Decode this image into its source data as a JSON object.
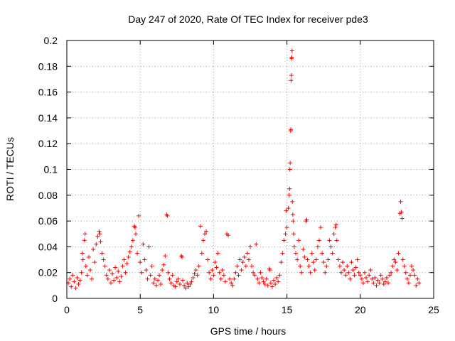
{
  "chart_data": {
    "type": "scatter",
    "title": "Day 247 of 2020, Rate Of TEC Index for receiver pde3",
    "xlabel": "GPS time / hours",
    "ylabel": "ROTI / TECUs",
    "xlim": [
      0,
      25
    ],
    "ylim": [
      0,
      0.2
    ],
    "xticks": [
      0,
      5,
      10,
      15,
      20,
      25
    ],
    "xtick_labels": [
      "0",
      "5",
      "10",
      "15",
      "20",
      "25"
    ],
    "yticks": [
      0,
      0.02,
      0.04,
      0.06,
      0.08,
      0.1,
      0.12,
      0.14,
      0.16,
      0.18,
      0.2
    ],
    "ytick_labels": [
      "0",
      "0.02",
      "0.04",
      "0.06",
      "0.08",
      "0.1",
      "0.12",
      "0.14",
      "0.16",
      "0.18",
      "0.2"
    ],
    "grid": true,
    "marker": "plus",
    "series_color": "#ff0000",
    "series": [
      {
        "name": "ROTI",
        "points": [
          [
            0.1,
            0.012
          ],
          [
            0.2,
            0.015
          ],
          [
            0.3,
            0.009
          ],
          [
            0.4,
            0.018
          ],
          [
            0.5,
            0.013
          ],
          [
            0.6,
            0.008
          ],
          [
            0.7,
            0.016
          ],
          [
            0.8,
            0.011
          ],
          [
            0.9,
            0.014
          ],
          [
            1.0,
            0.02
          ],
          [
            1.05,
            0.035
          ],
          [
            1.1,
            0.03
          ],
          [
            1.2,
            0.045
          ],
          [
            1.25,
            0.05
          ],
          [
            1.3,
            0.025
          ],
          [
            1.4,
            0.018
          ],
          [
            1.5,
            0.032
          ],
          [
            1.6,
            0.022
          ],
          [
            1.7,
            0.015
          ],
          [
            1.8,
            0.038
          ],
          [
            1.9,
            0.028
          ],
          [
            2.0,
            0.042
          ],
          [
            2.1,
            0.048
          ],
          [
            2.2,
            0.052
          ],
          [
            2.25,
            0.05
          ],
          [
            2.3,
            0.044
          ],
          [
            2.4,
            0.035
          ],
          [
            2.5,
            0.03
          ],
          [
            2.6,
            0.025
          ],
          [
            2.7,
            0.018
          ],
          [
            2.8,
            0.015
          ],
          [
            2.9,
            0.022
          ],
          [
            3.0,
            0.012
          ],
          [
            3.1,
            0.019
          ],
          [
            3.2,
            0.014
          ],
          [
            3.3,
            0.024
          ],
          [
            3.4,
            0.016
          ],
          [
            3.5,
            0.021
          ],
          [
            3.6,
            0.013
          ],
          [
            3.7,
            0.017
          ],
          [
            3.8,
            0.025
          ],
          [
            3.9,
            0.03
          ],
          [
            4.0,
            0.02
          ],
          [
            4.1,
            0.027
          ],
          [
            4.2,
            0.032
          ],
          [
            4.3,
            0.036
          ],
          [
            4.4,
            0.04
          ],
          [
            4.5,
            0.045
          ],
          [
            4.6,
            0.056
          ],
          [
            4.65,
            0.055
          ],
          [
            4.7,
            0.05
          ],
          [
            4.8,
            0.035
          ],
          [
            4.9,
            0.064
          ],
          [
            5.0,
            0.028
          ],
          [
            5.1,
            0.02
          ],
          [
            5.2,
            0.042
          ],
          [
            5.3,
            0.03
          ],
          [
            5.4,
            0.022
          ],
          [
            5.5,
            0.015
          ],
          [
            5.6,
            0.04
          ],
          [
            5.7,
            0.018
          ],
          [
            5.8,
            0.025
          ],
          [
            5.9,
            0.012
          ],
          [
            6.0,
            0.015
          ],
          [
            6.1,
            0.01
          ],
          [
            6.2,
            0.014
          ],
          [
            6.3,
            0.018
          ],
          [
            6.4,
            0.011
          ],
          [
            6.5,
            0.022
          ],
          [
            6.6,
            0.026
          ],
          [
            6.7,
            0.033
          ],
          [
            6.8,
            0.065
          ],
          [
            6.85,
            0.064
          ],
          [
            6.9,
            0.02
          ],
          [
            7.0,
            0.015
          ],
          [
            7.1,
            0.012
          ],
          [
            7.2,
            0.018
          ],
          [
            7.3,
            0.01
          ],
          [
            7.4,
            0.009
          ],
          [
            7.5,
            0.013
          ],
          [
            7.6,
            0.015
          ],
          [
            7.7,
            0.011
          ],
          [
            7.8,
            0.033
          ],
          [
            7.85,
            0.032
          ],
          [
            7.9,
            0.014
          ],
          [
            8.0,
            0.01
          ],
          [
            8.1,
            0.008
          ],
          [
            8.2,
            0.012
          ],
          [
            8.3,
            0.009
          ],
          [
            8.4,
            0.011
          ],
          [
            8.5,
            0.013
          ],
          [
            8.6,
            0.016
          ],
          [
            8.7,
            0.019
          ],
          [
            8.8,
            0.022
          ],
          [
            8.9,
            0.018
          ],
          [
            9.0,
            0.025
          ],
          [
            9.1,
            0.056
          ],
          [
            9.2,
            0.035
          ],
          [
            9.3,
            0.045
          ],
          [
            9.4,
            0.05
          ],
          [
            9.5,
            0.052
          ],
          [
            9.6,
            0.03
          ],
          [
            9.7,
            0.02
          ],
          [
            9.8,
            0.015
          ],
          [
            9.9,
            0.022
          ],
          [
            10.0,
            0.018
          ],
          [
            10.1,
            0.028
          ],
          [
            10.2,
            0.024
          ],
          [
            10.3,
            0.035
          ],
          [
            10.4,
            0.02
          ],
          [
            10.5,
            0.015
          ],
          [
            10.6,
            0.022
          ],
          [
            10.7,
            0.018
          ],
          [
            10.8,
            0.013
          ],
          [
            10.9,
            0.05
          ],
          [
            11.0,
            0.049
          ],
          [
            11.1,
            0.015
          ],
          [
            11.2,
            0.012
          ],
          [
            11.3,
            0.01
          ],
          [
            11.4,
            0.015
          ],
          [
            11.5,
            0.02
          ],
          [
            11.6,
            0.025
          ],
          [
            11.7,
            0.018
          ],
          [
            11.8,
            0.03
          ],
          [
            11.9,
            0.022
          ],
          [
            12.0,
            0.028
          ],
          [
            12.1,
            0.032
          ],
          [
            12.2,
            0.025
          ],
          [
            12.3,
            0.035
          ],
          [
            12.4,
            0.03
          ],
          [
            12.5,
            0.04
          ],
          [
            12.6,
            0.025
          ],
          [
            12.7,
            0.02
          ],
          [
            12.8,
            0.018
          ],
          [
            12.9,
            0.042
          ],
          [
            13.0,
            0.015
          ],
          [
            13.1,
            0.012
          ],
          [
            13.2,
            0.02
          ],
          [
            13.3,
            0.016
          ],
          [
            13.4,
            0.013
          ],
          [
            13.5,
            0.011
          ],
          [
            13.6,
            0.015
          ],
          [
            13.7,
            0.01
          ],
          [
            13.8,
            0.023
          ],
          [
            13.85,
            0.022
          ],
          [
            13.9,
            0.012
          ],
          [
            14.0,
            0.009
          ],
          [
            14.1,
            0.014
          ],
          [
            14.2,
            0.011
          ],
          [
            14.3,
            0.016
          ],
          [
            14.4,
            0.013
          ],
          [
            14.5,
            0.018
          ],
          [
            14.6,
            0.028
          ],
          [
            14.7,
            0.035
          ],
          [
            14.8,
            0.045
          ],
          [
            14.9,
            0.05
          ],
          [
            14.95,
            0.068
          ],
          [
            15.0,
            0.055
          ],
          [
            15.1,
            0.07
          ],
          [
            15.15,
            0.08
          ],
          [
            15.18,
            0.085
          ],
          [
            15.2,
            0.1
          ],
          [
            15.22,
            0.105
          ],
          [
            15.25,
            0.13
          ],
          [
            15.27,
            0.131
          ],
          [
            15.28,
            0.169
          ],
          [
            15.3,
            0.173
          ],
          [
            15.32,
            0.186
          ],
          [
            15.33,
            0.187
          ],
          [
            15.35,
            0.192
          ],
          [
            15.37,
            0.075
          ],
          [
            15.4,
            0.065
          ],
          [
            15.42,
            0.06
          ],
          [
            15.45,
            0.05
          ],
          [
            15.5,
            0.04
          ],
          [
            15.6,
            0.035
          ],
          [
            15.7,
            0.03
          ],
          [
            15.8,
            0.045
          ],
          [
            15.9,
            0.025
          ],
          [
            16.0,
            0.02
          ],
          [
            16.1,
            0.038
          ],
          [
            16.2,
            0.032
          ],
          [
            16.3,
            0.06
          ],
          [
            16.35,
            0.061
          ],
          [
            16.4,
            0.03
          ],
          [
            16.5,
            0.025
          ],
          [
            16.6,
            0.02
          ],
          [
            16.7,
            0.035
          ],
          [
            16.8,
            0.028
          ],
          [
            16.9,
            0.022
          ],
          [
            17.0,
            0.03
          ],
          [
            17.1,
            0.04
          ],
          [
            17.2,
            0.045
          ],
          [
            17.3,
            0.055
          ],
          [
            17.4,
            0.035
          ],
          [
            17.5,
            0.028
          ],
          [
            17.6,
            0.02
          ],
          [
            17.7,
            0.025
          ],
          [
            17.8,
            0.03
          ],
          [
            17.9,
            0.045
          ],
          [
            18.0,
            0.04
          ],
          [
            18.1,
            0.035
          ],
          [
            18.2,
            0.05
          ],
          [
            18.3,
            0.055
          ],
          [
            18.35,
            0.057
          ],
          [
            18.4,
            0.045
          ],
          [
            18.5,
            0.03
          ],
          [
            18.6,
            0.025
          ],
          [
            18.7,
            0.02
          ],
          [
            18.8,
            0.028
          ],
          [
            18.9,
            0.022
          ],
          [
            19.0,
            0.018
          ],
          [
            19.1,
            0.025
          ],
          [
            19.2,
            0.02
          ],
          [
            19.3,
            0.015
          ],
          [
            19.4,
            0.028
          ],
          [
            19.5,
            0.022
          ],
          [
            19.6,
            0.018
          ],
          [
            19.7,
            0.024
          ],
          [
            19.8,
            0.03
          ],
          [
            19.9,
            0.02
          ],
          [
            20.0,
            0.018
          ],
          [
            20.1,
            0.015
          ],
          [
            20.2,
            0.012
          ],
          [
            20.3,
            0.02
          ],
          [
            20.4,
            0.016
          ],
          [
            20.5,
            0.013
          ],
          [
            20.6,
            0.018
          ],
          [
            20.7,
            0.022
          ],
          [
            20.8,
            0.015
          ],
          [
            20.9,
            0.012
          ],
          [
            21.0,
            0.016
          ],
          [
            21.1,
            0.01
          ],
          [
            21.2,
            0.014
          ],
          [
            21.3,
            0.012
          ],
          [
            21.4,
            0.018
          ],
          [
            21.5,
            0.015
          ],
          [
            21.6,
            0.011
          ],
          [
            21.7,
            0.013
          ],
          [
            21.8,
            0.016
          ],
          [
            21.9,
            0.012
          ],
          [
            22.0,
            0.018
          ],
          [
            22.1,
            0.02
          ],
          [
            22.2,
            0.025
          ],
          [
            22.3,
            0.03
          ],
          [
            22.4,
            0.028
          ],
          [
            22.5,
            0.022
          ],
          [
            22.6,
            0.035
          ],
          [
            22.7,
            0.066
          ],
          [
            22.75,
            0.075
          ],
          [
            22.8,
            0.067
          ],
          [
            22.85,
            0.062
          ],
          [
            22.9,
            0.03
          ],
          [
            23.0,
            0.025
          ],
          [
            23.1,
            0.02
          ],
          [
            23.2,
            0.015
          ],
          [
            23.3,
            0.012
          ],
          [
            23.4,
            0.018
          ],
          [
            23.5,
            0.025
          ],
          [
            23.6,
            0.022
          ],
          [
            23.7,
            0.018
          ],
          [
            23.8,
            0.01
          ],
          [
            23.9,
            0.015
          ],
          [
            24.0,
            0.012
          ]
        ]
      }
    ]
  }
}
